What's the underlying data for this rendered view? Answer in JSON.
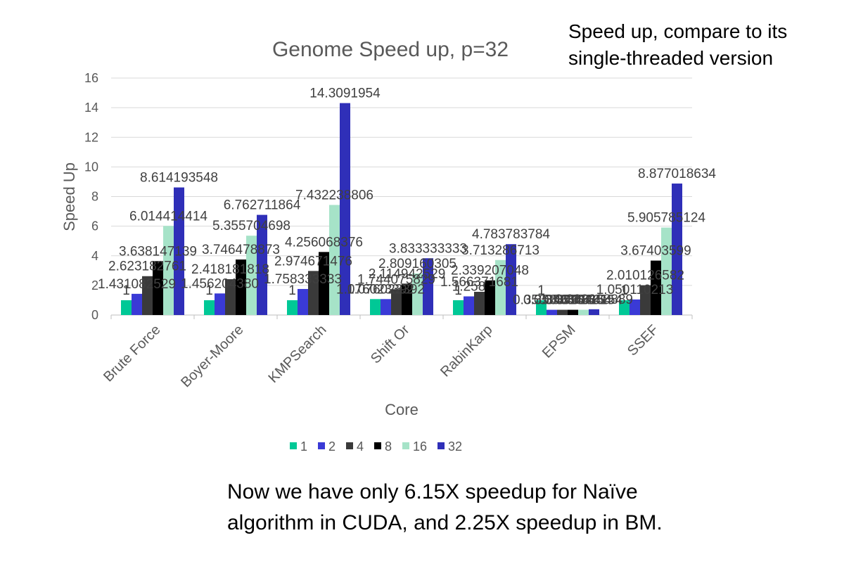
{
  "notes": {
    "top": "Speed up, compare to its single-threaded version",
    "bottom": "Now we have only 6.15X speedup for Naïve algorithm in CUDA, and 2.25X speedup in BM."
  },
  "chart_data": {
    "type": "bar",
    "title": "Genome Speed up, p=32",
    "xlabel": "Core",
    "ylabel": "Speed Up",
    "ylim": [
      0,
      16
    ],
    "yticks": [
      0,
      2,
      4,
      6,
      8,
      10,
      12,
      14,
      16
    ],
    "grid": true,
    "legend_position": "bottom",
    "categories": [
      "Brute Force",
      "Boyer-Moore",
      "KMPSearch",
      "Shift Or",
      "RabinKarp",
      "EPSM",
      "SSEF"
    ],
    "series": [
      {
        "name": "1",
        "color": "#00c896",
        "values": [
          1,
          1,
          1,
          1.076,
          1,
          1,
          1
        ]
      },
      {
        "name": "2",
        "color": "#3a3ad6",
        "values": [
          1.431082529,
          1.45620438,
          1.758333333,
          1.076023392,
          1.258,
          0.3538461538,
          1.050110213
        ]
      },
      {
        "name": "4",
        "color": "#3a3a3a",
        "values": [
          2.623182761,
          2.418181818,
          2.974671476,
          1.744075829,
          1.566371681,
          0.3538461538,
          2.010126582
        ]
      },
      {
        "name": "8",
        "color": "#000000",
        "values": [
          3.638147139,
          3.746478873,
          4.256068376,
          2.114942529,
          2.339207048,
          0.3538461538,
          3.67403599
        ]
      },
      {
        "name": "16",
        "color": "#a6e3c8",
        "values": [
          6.014414414,
          5.355704698,
          7.432238806,
          2.809160305,
          3.713286713,
          0.3538461538,
          5.905785124
        ]
      },
      {
        "name": "32",
        "color": "#2f2fb8",
        "values": [
          8.614193548,
          6.762711864,
          14.3091954,
          3.833333333,
          4.783783784,
          0.3888888889,
          8.877018634
        ]
      }
    ],
    "data_labels": [
      [
        "1",
        "1.431082529",
        "2.623182761",
        "3.638147139",
        "6.014414414",
        "8.614193548"
      ],
      [
        "1",
        "1.456204380",
        "2.418181818",
        "3.746478873",
        "5.355704698",
        "6.762711864"
      ],
      [
        "1",
        "1.758333333",
        "2.974671476",
        "4.256068376",
        "7.432238806",
        "14.3091954"
      ],
      [
        "1.076023392",
        "1.076023392",
        "1.744075829",
        "2.114942529",
        "2.809160305",
        "3.833333333"
      ],
      [
        "1",
        "1.258",
        "1.566371681",
        "2.339207048",
        "3.713286713",
        "4.783783784"
      ],
      [
        "1",
        "0.353846154",
        "0.353846154",
        "0.353846154",
        "0.353846154",
        "0.388888889"
      ],
      [
        "1",
        "1.050110213",
        "2.010126582",
        "3.67403599",
        "5.905785124",
        "8.877018634"
      ]
    ]
  }
}
